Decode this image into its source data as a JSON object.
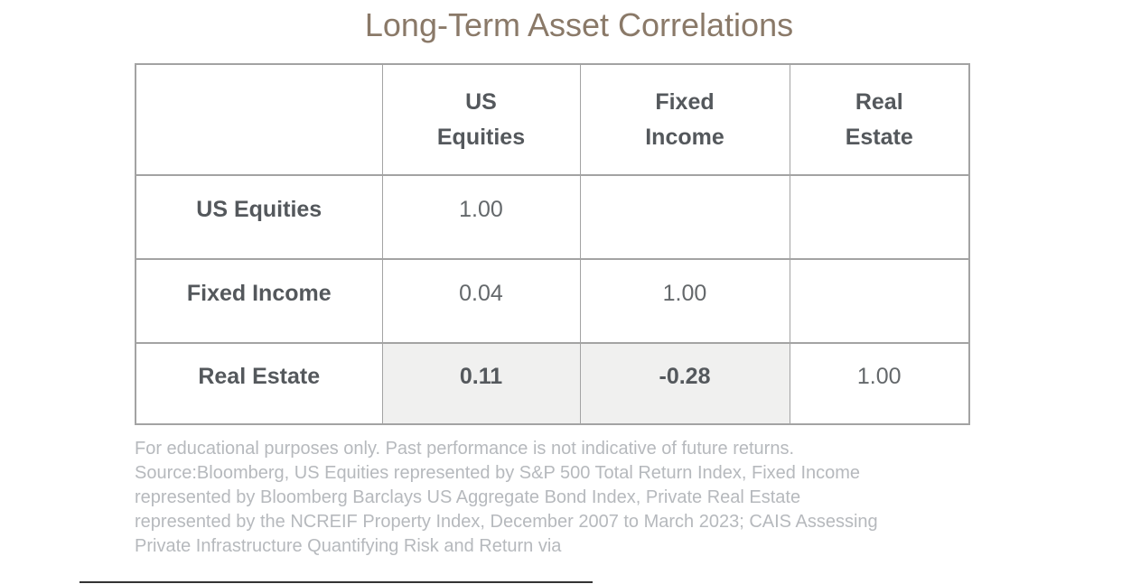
{
  "title": "Long-Term Asset Correlations",
  "colors": {
    "title_text": "#8a7968",
    "header_text": "#54585c",
    "value_text": "#64686b",
    "table_border": "#a3a3a3",
    "highlight_cell_bg": "#f0f0ef",
    "footnote_text": "#b6b9bd"
  },
  "table": {
    "headers": [
      "",
      "US\nEquities",
      "Fixed\nIncome",
      "Real\nEstate"
    ],
    "rows": [
      {
        "label": "US Equities",
        "cells": [
          "1.00",
          "",
          ""
        ]
      },
      {
        "label": "Fixed Income",
        "cells": [
          "0.04",
          "1.00",
          ""
        ]
      },
      {
        "label": "Real Estate",
        "cells": [
          "0.11",
          "-0.28",
          "1.00"
        ]
      }
    ]
  },
  "footnote": {
    "lines": [
      "For educational purposes only. Past performance is not indicative of future returns.",
      "Source:Bloomberg, US Equities represented by S&P 500 Total Return Index, Fixed Income",
      "represented by Bloomberg Barclays US Aggregate Bond Index, Private Real Estate",
      "represented by the NCREIF Property Index, December 2007 to March 2023; CAIS Assessing",
      "Private Infrastructure Quantifying Risk and Return via"
    ]
  },
  "chart_data": {
    "type": "table",
    "title": "Long-Term Asset Correlations",
    "columns": [
      "US Equities",
      "Fixed Income",
      "Real Estate"
    ],
    "row_labels": [
      "US Equities",
      "Fixed Income",
      "Real Estate"
    ],
    "matrix": [
      [
        1.0,
        null,
        null
      ],
      [
        0.04,
        1.0,
        null
      ],
      [
        0.11,
        -0.28,
        1.0
      ]
    ],
    "highlighted_cells": [
      {
        "row": "Real Estate",
        "column": "US Equities",
        "value": 0.11
      },
      {
        "row": "Real Estate",
        "column": "Fixed Income",
        "value": -0.28
      }
    ],
    "notes": "Lower-triangular correlation matrix; diagonal values equal 1.00; upper-triangular cells blank"
  }
}
